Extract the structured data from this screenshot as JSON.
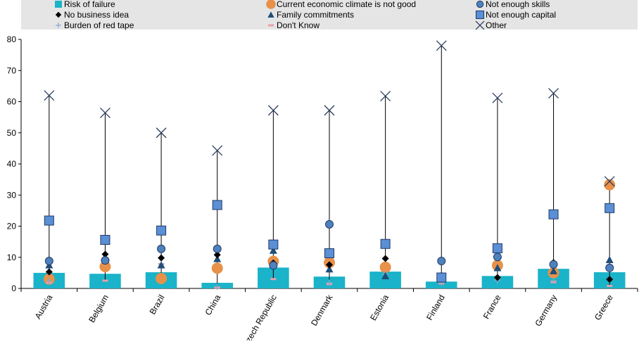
{
  "chart_data": {
    "type": "scatter",
    "categories": [
      "Austria",
      "Belgium",
      "Brazil",
      "China",
      "Czech Republic",
      "Denmark",
      "Estonia",
      "Finland",
      "France",
      "Germany",
      "Greece"
    ],
    "ylim": [
      0,
      80
    ],
    "yticks": [
      0,
      10,
      20,
      30,
      40,
      50,
      60,
      70,
      80
    ],
    "grid": false,
    "legend_position": "top",
    "series": [
      {
        "name": "Risk of failure",
        "marker": "bar",
        "color": "#1ab3c9",
        "values": [
          5,
          4.7,
          5.2,
          1.8,
          6.7,
          3.8,
          5.4,
          2.2,
          4.0,
          6.3,
          5.2
        ]
      },
      {
        "name": "Current economic climate is not good",
        "marker": "circle-large",
        "color": "#e8914a",
        "values": [
          3,
          7,
          3.2,
          6.5,
          8.7,
          8.3,
          6.8,
          null,
          7.4,
          5.0,
          33.3
        ]
      },
      {
        "name": "Not enough skills",
        "marker": "circle",
        "color": "#4f81bd",
        "values": [
          8.8,
          9,
          12.7,
          12.7,
          7.4,
          20.6,
          null,
          8.8,
          10.1,
          7.7,
          6.6
        ]
      },
      {
        "name": "No business idea",
        "marker": "diamond",
        "color": "#000000",
        "values": [
          5.3,
          11,
          9.8,
          10.8,
          8.2,
          7.6,
          9.6,
          3.8,
          3.5,
          8.3,
          2.9
        ]
      },
      {
        "name": "Family commitments",
        "marker": "triangle",
        "color": "#1f4e79",
        "values": [
          7.5,
          10,
          7.5,
          9.5,
          12.2,
          6.2,
          4.0,
          4.3,
          6.6,
          5.6,
          9.2
        ]
      },
      {
        "name": "Not enough capital",
        "marker": "square",
        "color": "#5b8fd6",
        "values": [
          21.8,
          15.6,
          18.6,
          26.8,
          14.1,
          11.3,
          14.3,
          3.5,
          12.9,
          23.8,
          25.8
        ]
      },
      {
        "name": "Burden of red tape",
        "marker": "plus",
        "color": "#8aa8d0",
        "values": [
          2.5,
          8.9,
          7.9,
          0.6,
          7.5,
          1.8,
          4.6,
          1.8,
          2.5,
          2.5,
          2.8
        ]
      },
      {
        "name": "Don't Know",
        "marker": "dash",
        "color": "#e8a0a8",
        "values": [
          1.8,
          2.5,
          7.8,
          0.3,
          3.0,
          1.4,
          null,
          1.6,
          3.2,
          2.0,
          0.8
        ]
      },
      {
        "name": "Other",
        "marker": "x",
        "color": "#2b3d5e",
        "values": [
          62,
          56.4,
          50,
          44.3,
          57.2,
          57.2,
          61.8,
          78,
          61.2,
          62.7,
          34.4
        ]
      }
    ]
  },
  "colors": {
    "legend_bg": "#e5e5e5",
    "axis": "#000000",
    "tick_text": "#000000"
  }
}
